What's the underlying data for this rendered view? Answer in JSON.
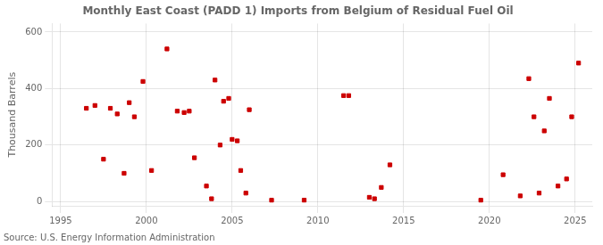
{
  "chart_data": {
    "type": "scatter",
    "title": "Monthly East Coast (PADD 1) Imports from Belgium of Residual Fuel Oil",
    "ylabel": "Thousand Barrels",
    "annotation": "Source: U.S. Energy Information Administration",
    "x": [
      1996.5,
      1997.0,
      1997.5,
      1997.9,
      1998.3,
      1998.7,
      1999.0,
      1999.3,
      1999.8,
      2000.3,
      2001.2,
      2001.8,
      2002.2,
      2002.5,
      2002.8,
      2003.5,
      2003.8,
      2004.0,
      2004.3,
      2004.5,
      2004.8,
      2005.0,
      2005.3,
      2005.5,
      2005.8,
      2006.0,
      2007.3,
      2009.2,
      2011.5,
      2011.8,
      2013.0,
      2013.3,
      2013.7,
      2014.2,
      2019.5,
      2020.8,
      2021.8,
      2022.3,
      2022.6,
      2022.9,
      2023.2,
      2023.5,
      2024.0,
      2024.5,
      2024.8,
      2025.2
    ],
    "values": [
      330,
      340,
      150,
      330,
      310,
      100,
      350,
      300,
      425,
      110,
      540,
      320,
      315,
      320,
      155,
      55,
      10,
      430,
      200,
      355,
      365,
      220,
      215,
      110,
      30,
      325,
      5,
      5,
      375,
      375,
      15,
      10,
      50,
      130,
      5,
      95,
      20,
      435,
      300,
      30,
      250,
      365,
      55,
      80,
      300,
      490
    ],
    "color": "#cc0000",
    "marker": "square",
    "xlim": [
      1994.5,
      2026
    ],
    "ylim": [
      -15,
      630
    ],
    "xticks": [
      1995,
      2000,
      2005,
      2010,
      2015,
      2020,
      2025
    ],
    "yticks": [
      0,
      200,
      400,
      600
    ],
    "grid": true
  }
}
